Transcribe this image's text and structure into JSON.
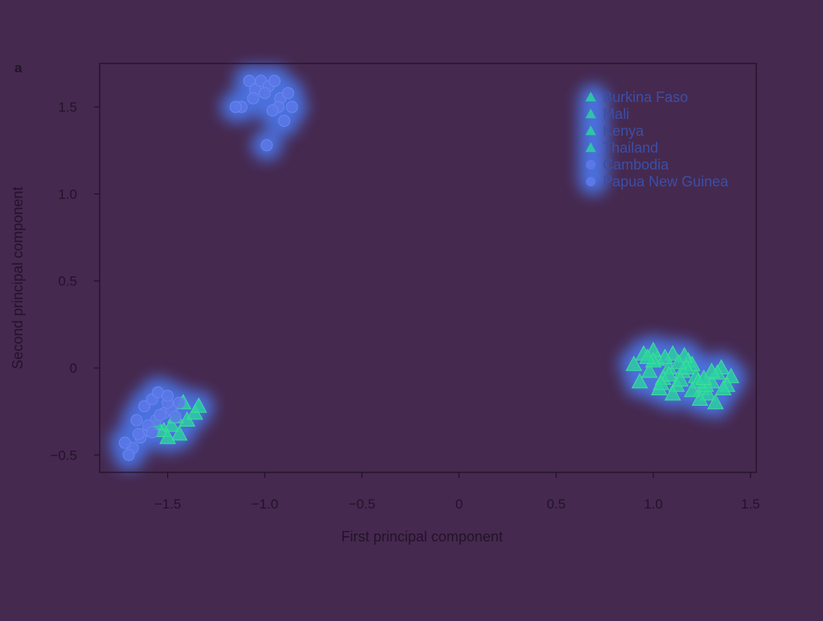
{
  "panel_label": "a",
  "colors": {
    "background": "#46294f",
    "axis": "#1f1226",
    "text": "#22132a",
    "glow": "#4b74e6",
    "triangle_fill": "#2ad3a0",
    "triangle_core": "#3fe09a",
    "circle_fill": "#5c78e8",
    "circle_stroke": "#6a88f0"
  },
  "chart_data": {
    "type": "scatter",
    "title": "",
    "xlabel": "First principal component",
    "ylabel": "Second principal component",
    "xlim": [
      -1.85,
      1.53
    ],
    "ylim": [
      -0.6,
      1.75
    ],
    "xticks": [
      -1.5,
      -1.0,
      -0.5,
      0,
      0.5,
      1.0,
      1.5
    ],
    "xtick_labels": [
      "−1.5",
      "−1.0",
      "−0.5",
      "0",
      "0.5",
      "1.0",
      "1.5"
    ],
    "yticks": [
      -0.5,
      0,
      0.5,
      1.0,
      1.5
    ],
    "ytick_labels": [
      "−0.5",
      "0",
      "0.5",
      "1.0",
      "1.5"
    ],
    "legend_position": "top-right",
    "series": [
      {
        "name": "Burkina Faso",
        "marker": "triangle",
        "x": [
          0.95,
          1.02,
          1.08,
          1.15,
          1.22,
          1.3,
          1.0,
          1.12,
          1.25,
          1.35,
          0.9,
          1.05,
          1.18,
          1.28,
          1.4,
          1.1
        ],
        "y": [
          0.08,
          0.05,
          0.0,
          -0.02,
          -0.05,
          -0.08,
          0.1,
          -0.1,
          -0.12,
          0.0,
          0.02,
          -0.06,
          0.04,
          -0.15,
          -0.05,
          0.08
        ]
      },
      {
        "name": "Mali",
        "marker": "triangle",
        "x": [
          0.98,
          1.06,
          1.14,
          1.2,
          1.27,
          1.33,
          1.03,
          1.16,
          1.24,
          1.38,
          0.93,
          1.1
        ],
        "y": [
          -0.02,
          0.06,
          -0.07,
          0.02,
          -0.1,
          -0.03,
          -0.12,
          0.07,
          -0.18,
          -0.1,
          -0.08,
          -0.15
        ]
      },
      {
        "name": "Kenya",
        "marker": "triangle",
        "x": [
          1.0,
          1.08,
          1.17,
          1.23,
          1.3,
          1.36,
          1.04,
          1.13,
          1.2,
          1.26,
          0.97,
          1.32
        ],
        "y": [
          0.04,
          -0.04,
          0.0,
          -0.08,
          -0.02,
          -0.12,
          -0.09,
          0.03,
          -0.13,
          -0.06,
          0.06,
          -0.2
        ]
      },
      {
        "name": "Thailand",
        "marker": "triangle",
        "x": [
          -1.52,
          -1.48,
          -1.44,
          -1.4,
          -1.36,
          -1.5,
          -1.42,
          -1.56,
          -1.34,
          -1.46
        ],
        "y": [
          -0.36,
          -0.33,
          -0.38,
          -0.3,
          -0.26,
          -0.4,
          -0.2,
          -0.32,
          -0.22,
          -0.28
        ]
      },
      {
        "name": "Cambodia",
        "marker": "circle",
        "x": [
          -1.68,
          -1.64,
          -1.6,
          -1.56,
          -1.52,
          -1.48,
          -1.44,
          -1.66,
          -1.62,
          -1.58,
          -1.54,
          -1.5,
          -1.46,
          -1.72,
          -1.7,
          -1.6,
          -1.55,
          -1.65,
          -1.5,
          -1.58
        ],
        "y": [
          -0.46,
          -0.4,
          -0.36,
          -0.3,
          -0.26,
          -0.24,
          -0.2,
          -0.3,
          -0.22,
          -0.18,
          -0.27,
          -0.2,
          -0.28,
          -0.43,
          -0.5,
          -0.33,
          -0.14,
          -0.38,
          -0.16,
          -0.37
        ]
      },
      {
        "name": "Papua New Guinea",
        "marker": "circle",
        "x": [
          -1.08,
          -1.05,
          -1.02,
          -0.98,
          -0.95,
          -0.92,
          -0.88,
          -1.12,
          -1.0,
          -0.93,
          -0.9,
          -1.06,
          -0.96,
          -1.15,
          -0.86,
          -0.99
        ],
        "y": [
          1.65,
          1.6,
          1.65,
          1.62,
          1.65,
          1.55,
          1.58,
          1.5,
          1.58,
          1.5,
          1.42,
          1.55,
          1.48,
          1.5,
          1.5,
          1.28
        ]
      }
    ]
  }
}
